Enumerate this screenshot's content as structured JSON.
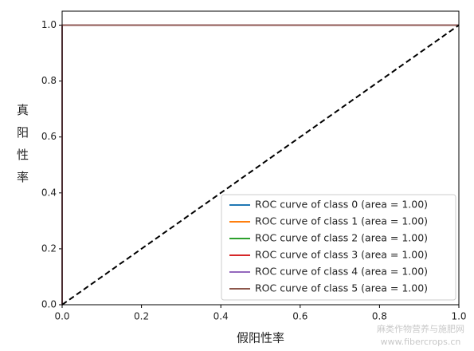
{
  "chart_data": {
    "type": "line",
    "xlabel": "假阳性率",
    "ylabel": "真阳性率",
    "xlim": [
      0,
      1
    ],
    "ylim": [
      0,
      1.05
    ],
    "xticks": [
      {
        "value": 0,
        "label": "0.0"
      },
      0.2,
      0.4,
      0.6,
      0.8,
      {
        "value": 1,
        "label": "1.0"
      }
    ],
    "yticks": [
      {
        "value": 0,
        "label": "0.0"
      },
      0.2,
      0.4,
      0.6,
      0.8,
      {
        "value": 1,
        "label": "1.0"
      }
    ],
    "legend": "lower right",
    "series": [
      {
        "name": "ROC curve of class 0 (area = 1.00)",
        "color": "#1f77b4",
        "x": [
          0,
          0,
          1
        ],
        "values": [
          0,
          1,
          1
        ]
      },
      {
        "name": "ROC curve of class 1 (area = 1.00)",
        "color": "#ff7f0e",
        "x": [
          0,
          0,
          1
        ],
        "values": [
          0,
          1,
          1
        ]
      },
      {
        "name": "ROC curve of class 2 (area = 1.00)",
        "color": "#2ca02c",
        "x": [
          0,
          0,
          1
        ],
        "values": [
          0,
          1,
          1
        ]
      },
      {
        "name": "ROC curve of class 3 (area = 1.00)",
        "color": "#d62728",
        "x": [
          0,
          0,
          1
        ],
        "values": [
          0,
          1,
          1
        ]
      },
      {
        "name": "ROC curve of class 4 (area = 1.00)",
        "color": "#9467bd",
        "x": [
          0,
          0,
          1
        ],
        "values": [
          0,
          1,
          1
        ]
      },
      {
        "name": "ROC curve of class 5 (area = 1.00)",
        "color": "#8c564b",
        "x": [
          0,
          0,
          1
        ],
        "values": [
          0,
          1,
          1
        ]
      }
    ],
    "reference_line": {
      "x": [
        0,
        1
      ],
      "values": [
        0,
        1
      ],
      "color": "#000000",
      "style": "dashed"
    }
  },
  "watermark": [
    "麻类作物营养与施肥网",
    "www.fibercrops.cn"
  ]
}
